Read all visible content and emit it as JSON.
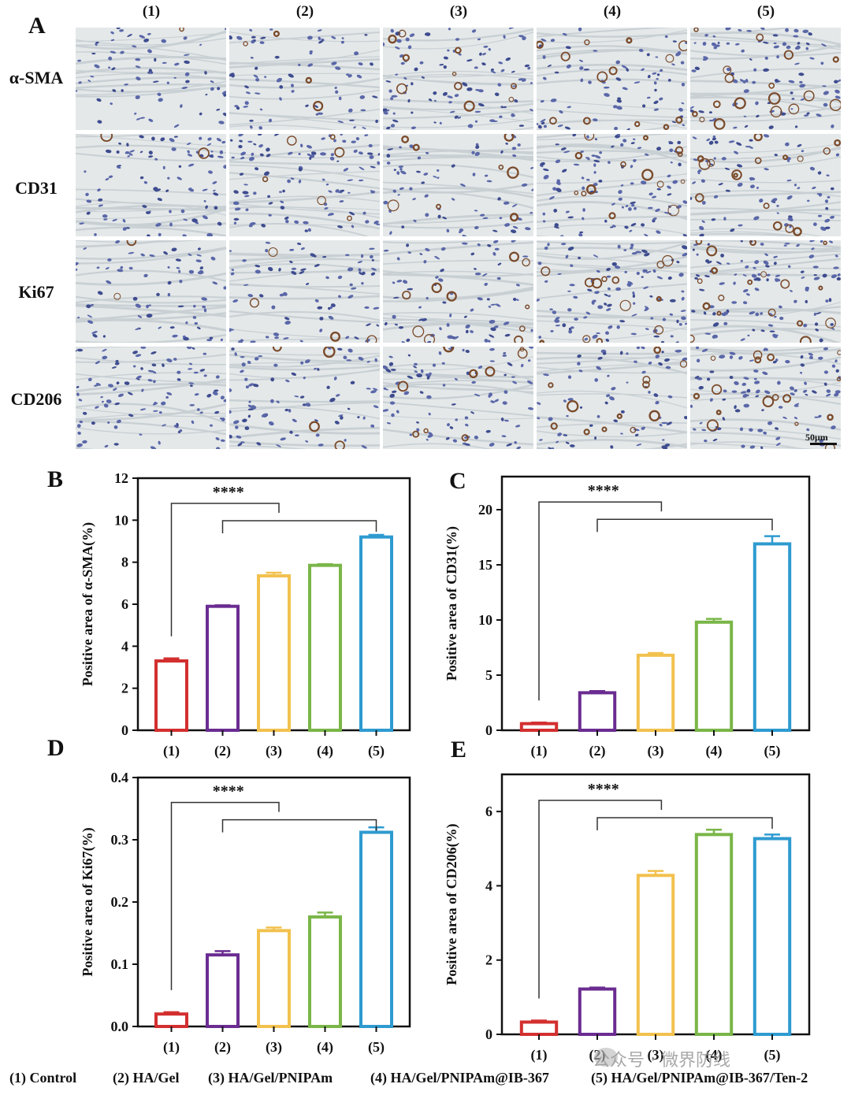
{
  "panel_a": {
    "letter": "A",
    "columns": [
      "(1)",
      "(2)",
      "(3)",
      "(4)",
      "(5)"
    ],
    "rows": [
      "α-SMA",
      "CD31",
      "Ki67",
      "CD206"
    ],
    "scale_label": "50μm"
  },
  "chart_data": [
    {
      "panel": "B",
      "type": "bar",
      "categories": [
        "(1)",
        "(2)",
        "(3)",
        "(4)",
        "(5)"
      ],
      "values": [
        3.3,
        5.9,
        7.35,
        7.85,
        9.2
      ],
      "errors": [
        0.12,
        0.05,
        0.15,
        0.06,
        0.1
      ],
      "ylabel": "Positive area of α-SMA(%)",
      "ylim": [
        0,
        12
      ],
      "yticks": [
        0,
        2,
        4,
        6,
        8,
        10,
        12
      ],
      "ytick_labels": [
        "0",
        "2",
        "4",
        "6",
        "8",
        "10",
        "12"
      ],
      "significance": "****",
      "colors": [
        "#d32f2f",
        "#6a2c91",
        "#f2c14e",
        "#7ab648",
        "#2e9bd0"
      ]
    },
    {
      "panel": "C",
      "type": "bar",
      "categories": [
        "(1)",
        "(2)",
        "(3)",
        "(4)",
        "(5)"
      ],
      "values": [
        0.6,
        3.4,
        6.8,
        9.8,
        16.9
      ],
      "errors": [
        0.1,
        0.15,
        0.2,
        0.3,
        0.7
      ],
      "ylabel": "Positive area of CD31(%)",
      "ylim": [
        0,
        23
      ],
      "yticks": [
        0,
        5,
        10,
        15,
        20
      ],
      "ytick_labels": [
        "0",
        "5",
        "10",
        "15",
        "20"
      ],
      "significance": "****",
      "colors": [
        "#d32f2f",
        "#6a2c91",
        "#f2c14e",
        "#7ab648",
        "#2e9bd0"
      ]
    },
    {
      "panel": "D",
      "type": "bar",
      "categories": [
        "(1)",
        "(2)",
        "(3)",
        "(4)",
        "(5)"
      ],
      "values": [
        0.02,
        0.115,
        0.154,
        0.176,
        0.312
      ],
      "errors": [
        0.003,
        0.006,
        0.005,
        0.007,
        0.008
      ],
      "ylabel": "Positive area of Ki67(%)",
      "ylim": [
        0,
        0.4
      ],
      "yticks": [
        0,
        0.1,
        0.2,
        0.3,
        0.4
      ],
      "ytick_labels": [
        "0.0",
        "0.1",
        "0.2",
        "0.3",
        "0.4"
      ],
      "significance": "****",
      "colors": [
        "#d32f2f",
        "#6a2c91",
        "#f2c14e",
        "#7ab648",
        "#2e9bd0"
      ]
    },
    {
      "panel": "E",
      "type": "bar",
      "categories": [
        "(1)",
        "(2)",
        "(3)",
        "(4)",
        "(5)"
      ],
      "values": [
        0.33,
        1.22,
        4.28,
        5.38,
        5.27
      ],
      "errors": [
        0.04,
        0.04,
        0.12,
        0.13,
        0.11
      ],
      "ylabel": "Positive area of CD206(%)",
      "ylim": [
        0,
        7
      ],
      "yticks": [
        0,
        2,
        4,
        6
      ],
      "ytick_labels": [
        "0",
        "2",
        "4",
        "6"
      ],
      "significance": "****",
      "colors": [
        "#d32f2f",
        "#6a2c91",
        "#f2c14e",
        "#7ab648",
        "#2e9bd0"
      ]
    }
  ],
  "legend_footer": [
    "(1) Control",
    "(2) HA/Gel",
    "(3) HA/Gel/PNIPAm",
    "(4) HA/Gel/PNIPAm@IB-367",
    "(5) HA/Gel/PNIPAm@IB-367/Ten-2"
  ],
  "watermark": "公众号 · 微界防线"
}
